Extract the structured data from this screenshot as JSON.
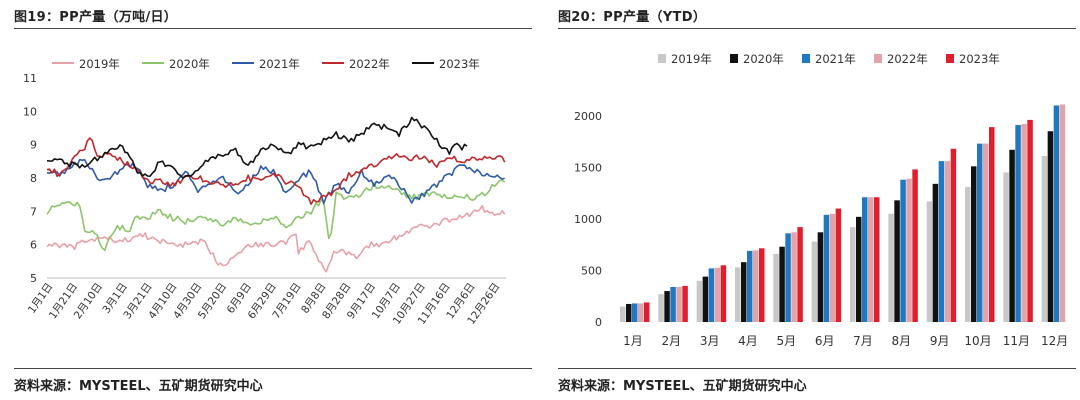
{
  "figures": {
    "left": {
      "title": "图19：PP产量（万吨/日）",
      "source": "资料来源：MYSTEEL、五矿期货研究中心"
    },
    "right": {
      "title": "图20：PP产量（YTD）",
      "source": "资料来源：MYSTEEL、五矿期货研究中心"
    }
  },
  "chart_data": [
    {
      "type": "line",
      "title": "PP产量（万吨/日）",
      "ylim": [
        5,
        11
      ],
      "yticks": [
        5,
        6,
        7,
        8,
        9,
        10,
        11
      ],
      "x_ticks": [
        "1月1日",
        "1月21日",
        "2月10日",
        "3月1日",
        "3月21日",
        "4月10日",
        "4月30日",
        "5月20日",
        "6月9日",
        "6月29日",
        "7月19日",
        "8月8日",
        "8月28日",
        "9月17日",
        "10月7日",
        "10月27日",
        "11月16日",
        "12月6日",
        "12月26日"
      ],
      "legend_position": "top",
      "series": [
        {
          "name": "2019年",
          "color": "#e8a0a8",
          "end_day": 365,
          "points": [
            [
              0,
              6.0
            ],
            [
              10,
              6.0
            ],
            [
              20,
              5.9
            ],
            [
              30,
              6.1
            ],
            [
              45,
              6.2
            ],
            [
              60,
              6.1
            ],
            [
              75,
              6.3
            ],
            [
              90,
              6.1
            ],
            [
              105,
              6.0
            ],
            [
              115,
              6.0
            ],
            [
              125,
              6.1
            ],
            [
              135,
              5.5
            ],
            [
              140,
              5.4
            ],
            [
              150,
              5.7
            ],
            [
              160,
              6.0
            ],
            [
              170,
              6.0
            ],
            [
              180,
              6.0
            ],
            [
              190,
              6.1
            ],
            [
              198,
              6.3
            ],
            [
              200,
              5.7
            ],
            [
              203,
              5.9
            ],
            [
              210,
              6.1
            ],
            [
              215,
              5.6
            ],
            [
              222,
              5.1
            ],
            [
              228,
              5.8
            ],
            [
              235,
              5.8
            ],
            [
              245,
              5.6
            ],
            [
              255,
              6.0
            ],
            [
              265,
              6.0
            ],
            [
              275,
              6.2
            ],
            [
              285,
              6.3
            ],
            [
              295,
              6.6
            ],
            [
              305,
              6.5
            ],
            [
              315,
              6.7
            ],
            [
              325,
              6.8
            ],
            [
              335,
              6.9
            ],
            [
              345,
              7.1
            ],
            [
              355,
              6.9
            ],
            [
              365,
              7.0
            ]
          ]
        },
        {
          "name": "2020年",
          "color": "#8cc56a",
          "end_day": 365,
          "points": [
            [
              0,
              7.0
            ],
            [
              10,
              7.2
            ],
            [
              20,
              7.2
            ],
            [
              25,
              7.3
            ],
            [
              30,
              6.5
            ],
            [
              35,
              6.4
            ],
            [
              40,
              6.3
            ],
            [
              45,
              5.8
            ],
            [
              50,
              6.2
            ],
            [
              55,
              6.5
            ],
            [
              60,
              6.5
            ],
            [
              65,
              6.3
            ],
            [
              70,
              6.8
            ],
            [
              80,
              6.8
            ],
            [
              90,
              7.0
            ],
            [
              100,
              6.8
            ],
            [
              110,
              6.7
            ],
            [
              120,
              6.8
            ],
            [
              130,
              6.8
            ],
            [
              140,
              6.6
            ],
            [
              150,
              6.8
            ],
            [
              160,
              6.6
            ],
            [
              170,
              6.7
            ],
            [
              180,
              6.8
            ],
            [
              190,
              6.6
            ],
            [
              200,
              6.8
            ],
            [
              210,
              7.0
            ],
            [
              215,
              7.2
            ],
            [
              220,
              7.3
            ],
            [
              225,
              6.0
            ],
            [
              230,
              7.5
            ],
            [
              240,
              7.4
            ],
            [
              250,
              7.5
            ],
            [
              260,
              7.8
            ],
            [
              270,
              7.7
            ],
            [
              280,
              7.6
            ],
            [
              290,
              7.4
            ],
            [
              300,
              7.5
            ],
            [
              310,
              7.5
            ],
            [
              320,
              7.4
            ],
            [
              330,
              7.5
            ],
            [
              340,
              7.4
            ],
            [
              350,
              7.6
            ],
            [
              360,
              7.9
            ],
            [
              365,
              7.8
            ]
          ]
        },
        {
          "name": "2021年",
          "color": "#2f5aa8",
          "end_day": 365,
          "points": [
            [
              0,
              8.2
            ],
            [
              10,
              8.1
            ],
            [
              20,
              8.4
            ],
            [
              30,
              8.5
            ],
            [
              40,
              8.0
            ],
            [
              50,
              8.0
            ],
            [
              60,
              8.3
            ],
            [
              70,
              8.4
            ],
            [
              80,
              7.8
            ],
            [
              90,
              7.6
            ],
            [
              100,
              7.8
            ],
            [
              110,
              8.2
            ],
            [
              120,
              7.6
            ],
            [
              130,
              7.8
            ],
            [
              140,
              8.0
            ],
            [
              150,
              7.5
            ],
            [
              160,
              7.8
            ],
            [
              170,
              8.3
            ],
            [
              180,
              8.2
            ],
            [
              190,
              7.5
            ],
            [
              200,
              8.0
            ],
            [
              210,
              8.2
            ],
            [
              220,
              7.3
            ],
            [
              230,
              7.8
            ],
            [
              240,
              7.6
            ],
            [
              250,
              8.2
            ],
            [
              260,
              7.8
            ],
            [
              270,
              8.1
            ],
            [
              280,
              7.8
            ],
            [
              290,
              7.3
            ],
            [
              300,
              7.5
            ],
            [
              310,
              7.8
            ],
            [
              320,
              8.1
            ],
            [
              330,
              8.4
            ],
            [
              340,
              8.2
            ],
            [
              350,
              8.1
            ],
            [
              360,
              8.0
            ],
            [
              365,
              8.0
            ]
          ]
        },
        {
          "name": "2022年",
          "color": "#c0282c",
          "end_day": 365,
          "points": [
            [
              0,
              8.3
            ],
            [
              10,
              8.1
            ],
            [
              20,
              8.5
            ],
            [
              30,
              8.9
            ],
            [
              35,
              9.2
            ],
            [
              40,
              8.6
            ],
            [
              50,
              8.8
            ],
            [
              60,
              8.5
            ],
            [
              70,
              8.3
            ],
            [
              80,
              7.9
            ],
            [
              90,
              7.9
            ],
            [
              100,
              7.8
            ],
            [
              110,
              8.0
            ],
            [
              120,
              8.0
            ],
            [
              130,
              7.9
            ],
            [
              140,
              7.8
            ],
            [
              150,
              7.8
            ],
            [
              160,
              8.0
            ],
            [
              170,
              7.9
            ],
            [
              180,
              8.1
            ],
            [
              190,
              7.9
            ],
            [
              200,
              7.7
            ],
            [
              210,
              7.3
            ],
            [
              220,
              7.4
            ],
            [
              230,
              7.6
            ],
            [
              240,
              8.1
            ],
            [
              250,
              8.2
            ],
            [
              260,
              8.4
            ],
            [
              270,
              8.6
            ],
            [
              280,
              8.7
            ],
            [
              290,
              8.6
            ],
            [
              300,
              8.6
            ],
            [
              310,
              8.4
            ],
            [
              320,
              8.6
            ],
            [
              330,
              8.5
            ],
            [
              340,
              8.6
            ],
            [
              350,
              8.6
            ],
            [
              360,
              8.7
            ],
            [
              365,
              8.5
            ]
          ]
        },
        {
          "name": "2023年",
          "color": "#111111",
          "end_day": 335,
          "points": [
            [
              0,
              8.6
            ],
            [
              10,
              8.5
            ],
            [
              20,
              8.4
            ],
            [
              30,
              8.3
            ],
            [
              40,
              8.6
            ],
            [
              50,
              8.8
            ],
            [
              60,
              9.0
            ],
            [
              70,
              8.3
            ],
            [
              80,
              8.0
            ],
            [
              90,
              8.5
            ],
            [
              100,
              8.3
            ],
            [
              110,
              8.0
            ],
            [
              120,
              8.3
            ],
            [
              130,
              8.6
            ],
            [
              140,
              8.7
            ],
            [
              150,
              8.8
            ],
            [
              160,
              8.4
            ],
            [
              170,
              8.8
            ],
            [
              180,
              9.0
            ],
            [
              190,
              8.7
            ],
            [
              200,
              9.0
            ],
            [
              210,
              8.9
            ],
            [
              220,
              9.1
            ],
            [
              230,
              9.3
            ],
            [
              240,
              9.1
            ],
            [
              250,
              9.3
            ],
            [
              260,
              9.6
            ],
            [
              270,
              9.5
            ],
            [
              280,
              9.3
            ],
            [
              290,
              9.8
            ],
            [
              300,
              9.5
            ],
            [
              310,
              9.1
            ],
            [
              320,
              8.8
            ],
            [
              325,
              9.1
            ],
            [
              330,
              8.9
            ],
            [
              335,
              9.0
            ]
          ]
        }
      ]
    },
    {
      "type": "bar",
      "title": "PP产量（YTD）",
      "categories": [
        "1月",
        "2月",
        "3月",
        "4月",
        "5月",
        "6月",
        "7月",
        "8月",
        "9月",
        "10月",
        "11月",
        "12月"
      ],
      "ylim": [
        0,
        2250
      ],
      "yticks": [
        0,
        500,
        1000,
        1500,
        2000
      ],
      "legend_position": "top",
      "series": [
        {
          "name": "2019年",
          "color": "#c8c8c8",
          "values": [
            150,
            270,
            400,
            530,
            660,
            780,
            920,
            1050,
            1170,
            1310,
            1450,
            1610
          ]
        },
        {
          "name": "2020年",
          "color": "#111111",
          "values": [
            175,
            300,
            440,
            580,
            730,
            870,
            1020,
            1180,
            1340,
            1510,
            1670,
            1850
          ]
        },
        {
          "name": "2021年",
          "color": "#1f78c0",
          "values": [
            180,
            340,
            520,
            690,
            860,
            1040,
            1210,
            1380,
            1560,
            1730,
            1910,
            2100
          ]
        },
        {
          "name": "2022年",
          "color": "#e3a3aa",
          "values": [
            180,
            340,
            525,
            695,
            870,
            1050,
            1210,
            1390,
            1560,
            1730,
            1920,
            2110
          ]
        },
        {
          "name": "2023年",
          "color": "#e01e2c",
          "values": [
            190,
            350,
            550,
            715,
            920,
            1100,
            1210,
            1480,
            1680,
            1890,
            1960,
            null
          ]
        }
      ]
    }
  ]
}
